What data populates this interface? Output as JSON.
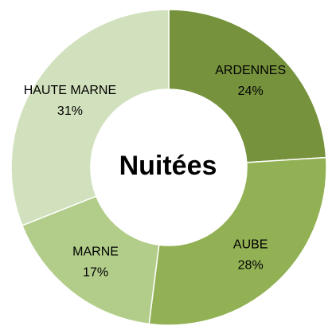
{
  "chart_data": {
    "type": "donut",
    "title": "Nuitées",
    "categories": [
      "ARDENNES",
      "AUBE",
      "MARNE",
      "HAUTE MARNE"
    ],
    "values": [
      24,
      28,
      17,
      31
    ],
    "value_labels": [
      "24%",
      "28%",
      "17%",
      "31%"
    ],
    "colors": [
      "#76923c",
      "#92b154",
      "#b2cd8a",
      "#d2e1bd"
    ]
  }
}
